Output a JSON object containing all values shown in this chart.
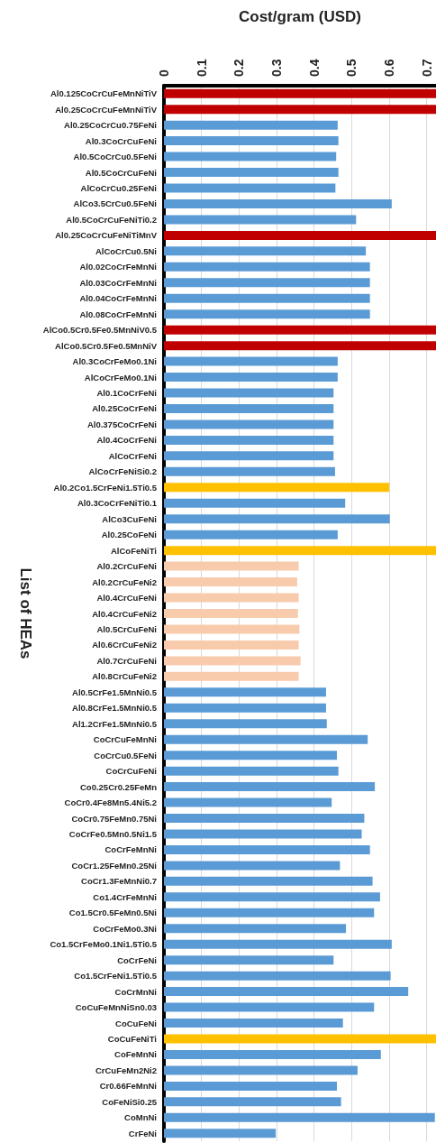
{
  "chart_data": {
    "type": "bar",
    "orientation": "horizontal",
    "xlabel": "Cost/gram (USD)",
    "ylabel": "List of HEAs",
    "categories": [
      "Al0.125CoCrCuFeMnNiTiV",
      "Al0.25CoCrCuFeMnNiTiV",
      "Al0.25CoCrCu0.75FeNi",
      "Al0.3CoCrCuFeNi",
      "Al0.5CoCrCu0.5FeNi",
      "Al0.5CoCrCuFeNi",
      "AlCoCrCu0.25FeNi",
      "AlCo3.5CrCu0.5FeNi",
      "Al0.5CoCrCuFeNiTi0.2",
      "Al0.25CoCrCuFeNiTiMnV",
      "AlCoCrCu0.5Ni",
      "Al0.02CoCrFeMnNi",
      "Al0.03CoCrFeMnNi",
      "Al0.04CoCrFeMnNi",
      "Al0.08CoCrFeMnNi",
      "AlCo0.5Cr0.5Fe0.5MnNiV0.5",
      "AlCo0.5Cr0.5Fe0.5MnNiV",
      "Al0.3CoCrFeMo0.1Ni",
      "AlCoCrFeMo0.1Ni",
      "Al0.1CoCrFeNi",
      "Al0.25CoCrFeNi",
      "Al0.375CoCrFeNi",
      "Al0.4CoCrFeNi",
      "AlCoCrFeNi",
      "AlCoCrFeNiSi0.2",
      "Al0.2Co1.5CrFeNi1.5Ti0.5",
      "Al0.3CoCrFeNiTi0.1",
      "AlCo3CuFeNi",
      "Al0.25CoFeNi",
      "AlCoFeNiTi",
      "Al0.2CrCuFeNi",
      "Al0.2CrCuFeNi2",
      "Al0.4CrCuFeNi",
      "Al0.4CrCuFeNi2",
      "Al0.5CrCuFeNi",
      "Al0.6CrCuFeNi2",
      "Al0.7CrCuFeNi",
      "Al0.8CrCuFeNi2",
      "Al0.5CrFe1.5MnNi0.5",
      "Al0.8CrFe1.5MnNi0.5",
      "Al1.2CrFe1.5MnNi0.5",
      "CoCrCuFeMnNi",
      "CoCrCu0.5FeNi",
      "CoCrCuFeNi",
      "Co0.25Cr0.25FeMn",
      "CoCr0.4Fe8Mn5.4Ni5.2",
      "CoCr0.75FeMn0.75Ni",
      "CoCrFe0.5Mn0.5Ni1.5",
      "CoCrFeMnNi",
      "CoCr1.25FeMn0.25Ni",
      "CoCr1.3FeMnNi0.7",
      "Co1.4CrFeMnNi",
      "Co1.5Cr0.5FeMn0.5Ni",
      "CoCrFeMo0.3Ni",
      "Co1.5CrFeMo0.1Ni1.5Ti0.5",
      "CoCrFeNi",
      "Co1.5CrFeNi1.5Ti0.5",
      "CoCrMnNi",
      "CoCuFeMnNiSn0.03",
      "CoCuFeNi",
      "CoCuFeNiTi",
      "CoFeMnNi",
      "CrCuFeMn2Ni2",
      "Cr0.66FeMnNi",
      "CoFeNiSi0.25",
      "CoMnNi",
      "CrFeNi"
    ],
    "values": [
      0.725,
      0.725,
      0.463,
      0.465,
      0.459,
      0.465,
      0.457,
      0.607,
      0.512,
      0.725,
      0.538,
      0.549,
      0.549,
      0.549,
      0.549,
      0.725,
      0.725,
      0.463,
      0.463,
      0.452,
      0.452,
      0.452,
      0.452,
      0.452,
      0.456,
      0.6,
      0.483,
      0.602,
      0.463,
      0.725,
      0.359,
      0.355,
      0.359,
      0.357,
      0.361,
      0.359,
      0.364,
      0.359,
      0.432,
      0.432,
      0.434,
      0.543,
      0.461,
      0.465,
      0.562,
      0.447,
      0.534,
      0.527,
      0.549,
      0.469,
      0.556,
      0.576,
      0.56,
      0.485,
      0.607,
      0.452,
      0.604,
      0.651,
      0.56,
      0.477,
      0.725,
      0.578,
      0.516,
      0.461,
      0.472,
      0.722,
      0.298
    ],
    "colors": [
      "#c00000",
      "#c00000",
      "#5b9bd5",
      "#5b9bd5",
      "#5b9bd5",
      "#5b9bd5",
      "#5b9bd5",
      "#5b9bd5",
      "#5b9bd5",
      "#c00000",
      "#5b9bd5",
      "#5b9bd5",
      "#5b9bd5",
      "#5b9bd5",
      "#5b9bd5",
      "#c00000",
      "#c00000",
      "#5b9bd5",
      "#5b9bd5",
      "#5b9bd5",
      "#5b9bd5",
      "#5b9bd5",
      "#5b9bd5",
      "#5b9bd5",
      "#5b9bd5",
      "#ffc000",
      "#5b9bd5",
      "#5b9bd5",
      "#5b9bd5",
      "#ffc000",
      "#f8cbad",
      "#f8cbad",
      "#f8cbad",
      "#f8cbad",
      "#f8cbad",
      "#f8cbad",
      "#f8cbad",
      "#f8cbad",
      "#5b9bd5",
      "#5b9bd5",
      "#5b9bd5",
      "#5b9bd5",
      "#5b9bd5",
      "#5b9bd5",
      "#5b9bd5",
      "#5b9bd5",
      "#5b9bd5",
      "#5b9bd5",
      "#5b9bd5",
      "#5b9bd5",
      "#5b9bd5",
      "#5b9bd5",
      "#5b9bd5",
      "#5b9bd5",
      "#5b9bd5",
      "#5b9bd5",
      "#5b9bd5",
      "#5b9bd5",
      "#5b9bd5",
      "#5b9bd5",
      "#ffc000",
      "#5b9bd5",
      "#5b9bd5",
      "#5b9bd5",
      "#5b9bd5",
      "#5b9bd5",
      "#5b9bd5"
    ],
    "xlim": [
      0,
      0.725
    ],
    "xticks": [
      0,
      0.1,
      0.2,
      0.3,
      0.4,
      0.5,
      0.6,
      0.7
    ],
    "grid": "x"
  }
}
